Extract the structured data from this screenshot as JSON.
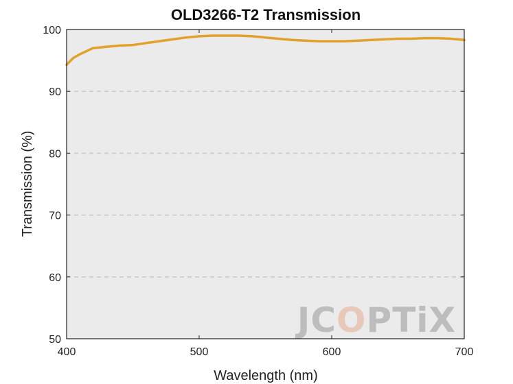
{
  "chart_data": {
    "type": "line",
    "title": "OLD3266-T2 Transmission",
    "xlabel": "Wavelength (nm)",
    "ylabel": "Transmission (%)",
    "xlim": [
      400,
      700
    ],
    "ylim": [
      50,
      100
    ],
    "xticks": [
      400,
      500,
      600,
      700
    ],
    "yticks": [
      50,
      60,
      70,
      80,
      90,
      100
    ],
    "grid": "horizontal dashed",
    "series": [
      {
        "color": "#E0A22A",
        "x": [
          400,
          405,
          410,
          420,
          430,
          440,
          450,
          460,
          470,
          480,
          490,
          500,
          510,
          520,
          530,
          540,
          550,
          560,
          570,
          580,
          590,
          600,
          610,
          620,
          630,
          640,
          650,
          660,
          670,
          680,
          690,
          700
        ],
        "y": [
          94.3,
          95.4,
          96.0,
          97.0,
          97.2,
          97.4,
          97.5,
          97.8,
          98.1,
          98.4,
          98.7,
          98.9,
          99.0,
          99.0,
          99.0,
          98.9,
          98.7,
          98.5,
          98.3,
          98.2,
          98.1,
          98.1,
          98.1,
          98.2,
          98.3,
          98.4,
          98.5,
          98.5,
          98.6,
          98.6,
          98.5,
          98.3
        ]
      }
    ]
  },
  "watermark": {
    "parts": [
      "JC",
      "O",
      "PTiX"
    ],
    "colors": [
      "#bdbdbd",
      "#e8c8b8",
      "#bdbdbd"
    ]
  }
}
